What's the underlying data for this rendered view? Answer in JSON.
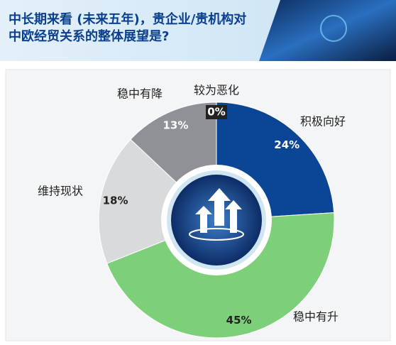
{
  "chart_data": {
    "type": "donut",
    "title": "中长期来看 (未来五年)，贵企业/贵机构对中欧经贸关系的整体展望是?",
    "categories": [
      "积极向好",
      "稳中有升",
      "维持现状",
      "稳中有降",
      "较为恶化"
    ],
    "values": [
      24,
      45,
      18,
      13,
      0
    ],
    "value_labels": [
      "24%",
      "45%",
      "18%",
      "13%",
      "0%"
    ],
    "colors": [
      "#0b4596",
      "#7ecf7a",
      "#d9dadb",
      "#8f9196",
      "#222222"
    ]
  }
}
